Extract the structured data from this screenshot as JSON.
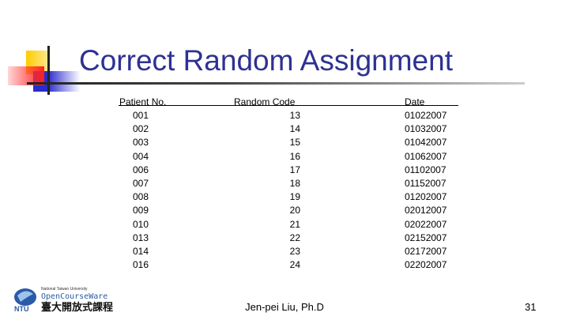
{
  "title": "Correct Random Assignment",
  "table": {
    "headers": [
      "Patient No.",
      "Random Code",
      "Date"
    ],
    "rows": [
      [
        "001",
        "13",
        "01022007"
      ],
      [
        "002",
        "14",
        "01032007"
      ],
      [
        "003",
        "15",
        "01042007"
      ],
      [
        "004",
        "16",
        "01062007"
      ],
      [
        "006",
        "17",
        "01102007"
      ],
      [
        "007",
        "18",
        "01152007"
      ],
      [
        "008",
        "19",
        "01202007"
      ],
      [
        "009",
        "20",
        "02012007"
      ],
      [
        "010",
        "21",
        "02022007"
      ],
      [
        "013",
        "22",
        "02152007"
      ],
      [
        "014",
        "23",
        "02172007"
      ],
      [
        "016",
        "24",
        "02202007"
      ]
    ]
  },
  "footer": {
    "author": "Jen-pei Liu, Ph.D",
    "page": "31"
  },
  "logo": {
    "line1": "National Taiwan University",
    "line2": "OpenCourseWare",
    "line3": "臺大開放式課程",
    "mark": "NTU"
  }
}
